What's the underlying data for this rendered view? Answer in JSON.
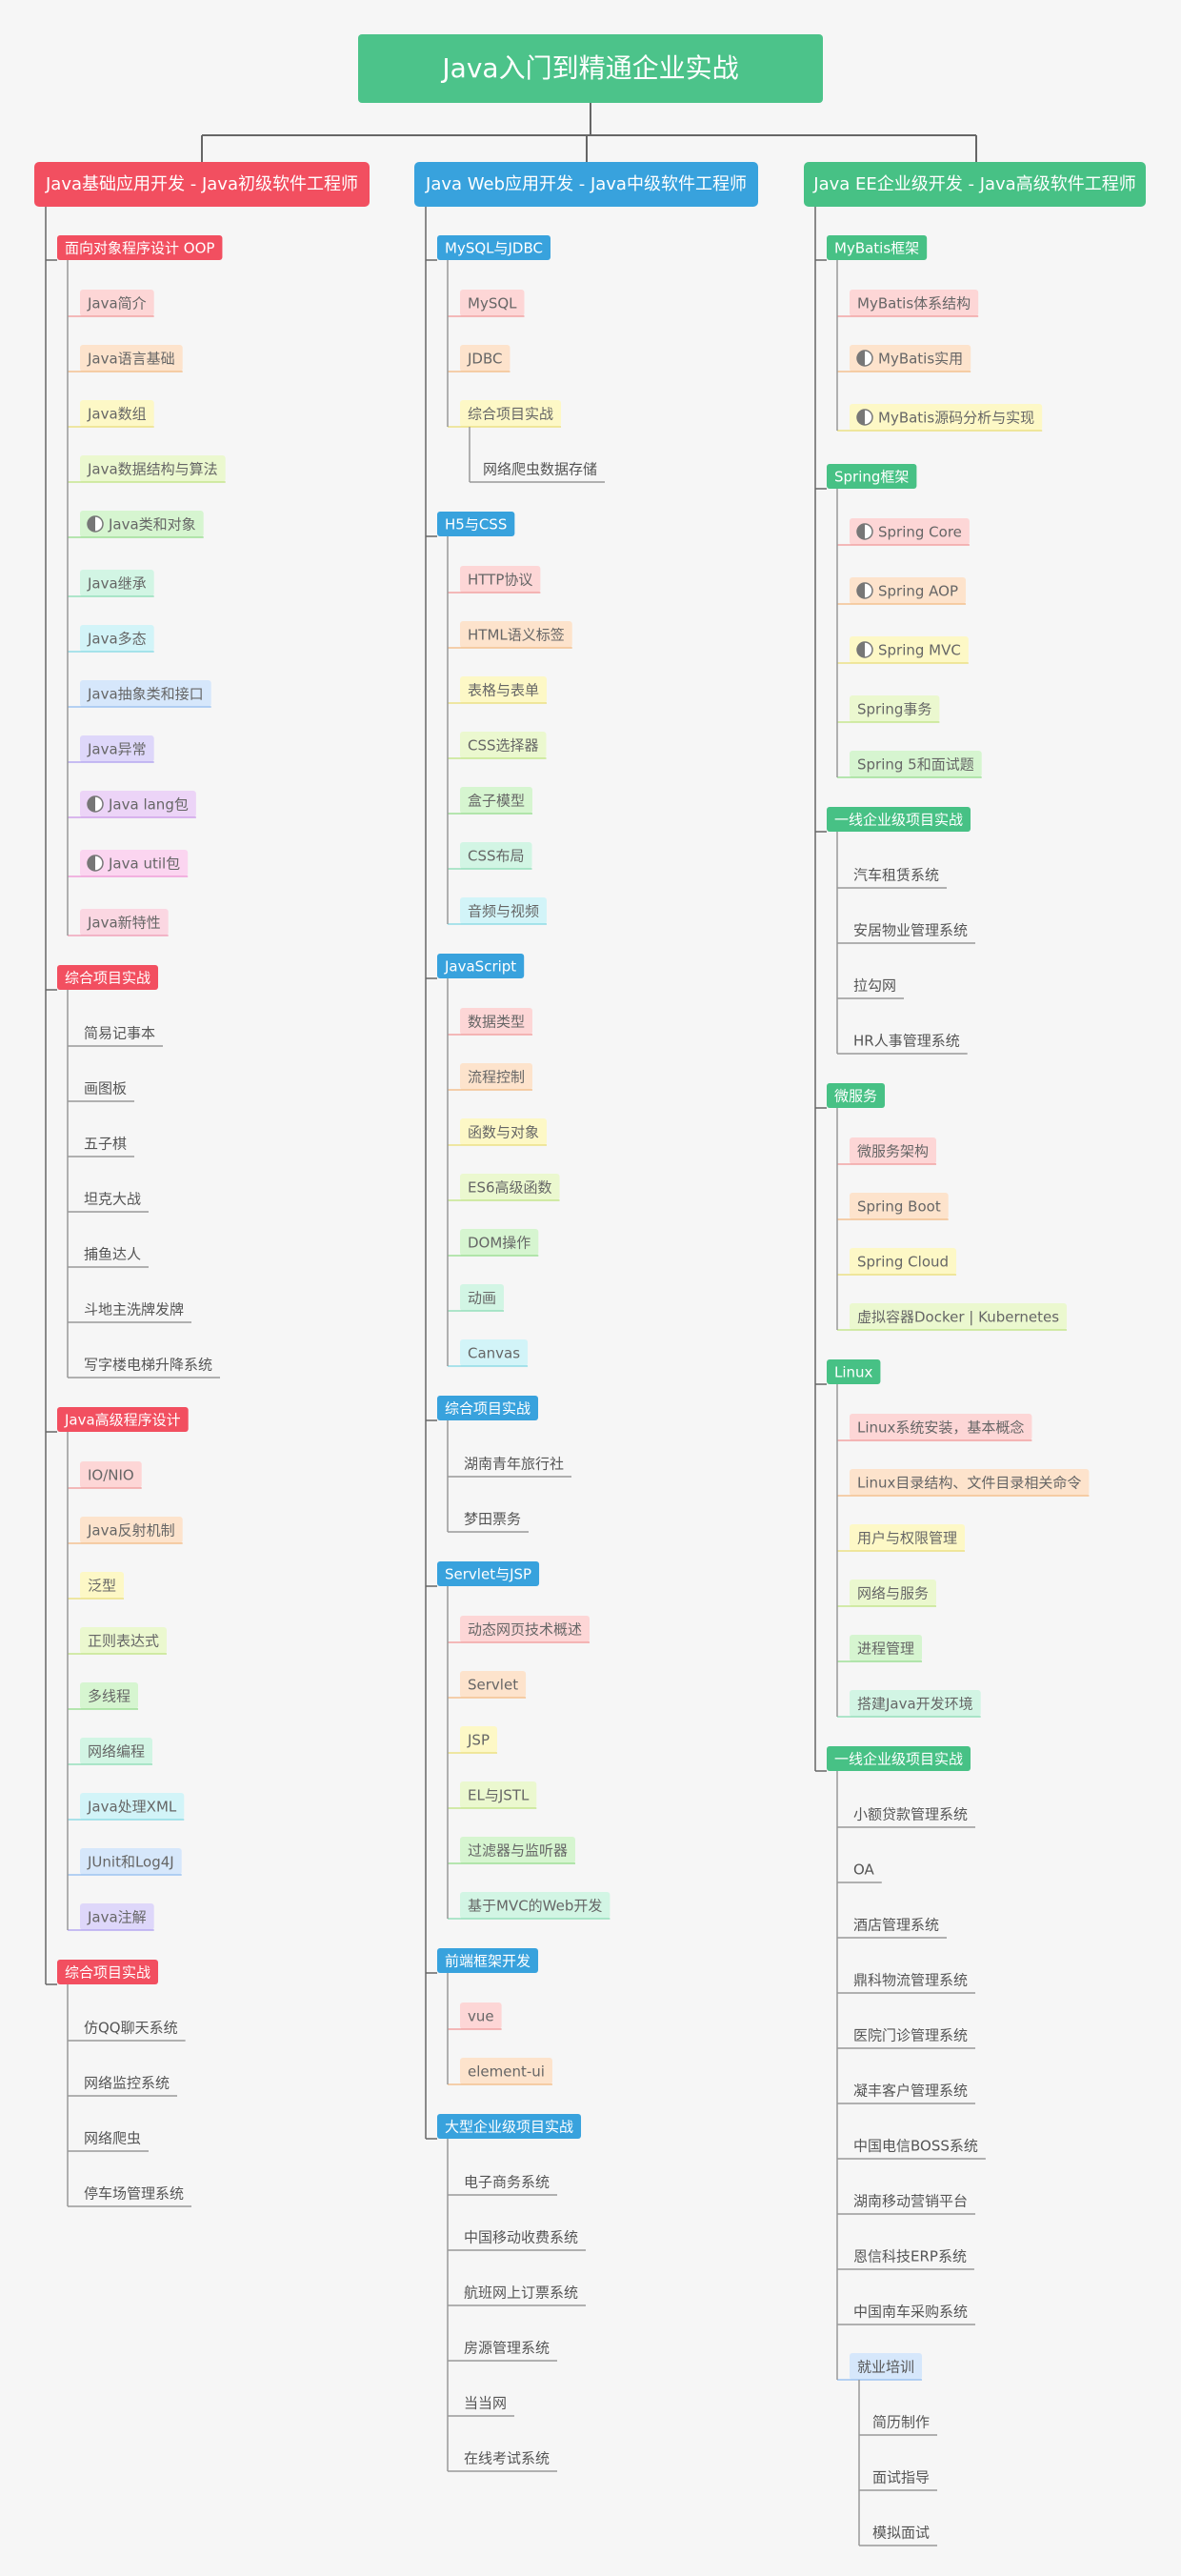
{
  "title": "Java入门到精通企业实战",
  "branches": [
    {
      "label": "Java基础应用开发 - Java初级软件工程师",
      "color": "#f24f60",
      "sections": [
        {
          "label": "面向对象程序设计 OOP",
          "items": [
            {
              "label": "Java简介"
            },
            {
              "label": "Java语言基础"
            },
            {
              "label": "Java数组"
            },
            {
              "label": "Java数据结构与算法"
            },
            {
              "label": "Java类和对象",
              "icon": "half-circle"
            },
            {
              "label": "Java继承"
            },
            {
              "label": "Java多态"
            },
            {
              "label": "Java抽象类和接口"
            },
            {
              "label": "Java异常"
            },
            {
              "label": "Java lang包",
              "icon": "half-circle"
            },
            {
              "label": "Java util包",
              "icon": "half-circle"
            },
            {
              "label": "Java新特性"
            }
          ]
        },
        {
          "label": "综合项目实战",
          "style": "plain",
          "items": [
            {
              "label": "简易记事本"
            },
            {
              "label": "画图板"
            },
            {
              "label": "五子棋"
            },
            {
              "label": "坦克大战"
            },
            {
              "label": "捕鱼达人"
            },
            {
              "label": "斗地主洗牌发牌"
            },
            {
              "label": "写字楼电梯升降系统"
            }
          ]
        },
        {
          "label": "Java高级程序设计",
          "items": [
            {
              "label": "IO/NIO"
            },
            {
              "label": "Java反射机制"
            },
            {
              "label": "泛型"
            },
            {
              "label": "正则表达式"
            },
            {
              "label": "多线程"
            },
            {
              "label": "网络编程"
            },
            {
              "label": "Java处理XML"
            },
            {
              "label": "JUnit和Log4J"
            },
            {
              "label": "Java注解"
            }
          ]
        },
        {
          "label": "综合项目实战",
          "style": "plain",
          "items": [
            {
              "label": "仿QQ聊天系统"
            },
            {
              "label": "网络监控系统"
            },
            {
              "label": "网络爬虫"
            },
            {
              "label": "停车场管理系统"
            }
          ]
        }
      ]
    },
    {
      "label": "Java Web应用开发 - Java中级软件工程师",
      "color": "#38a2dd",
      "sections": [
        {
          "label": "MySQL与JDBC",
          "items": [
            {
              "label": "MySQL"
            },
            {
              "label": "JDBC"
            },
            {
              "label": "综合项目实战",
              "children": [
                {
                  "label": "网络爬虫数据存储"
                }
              ]
            }
          ]
        },
        {
          "label": "H5与CSS",
          "items": [
            {
              "label": "HTTP协议"
            },
            {
              "label": "HTML语义标签"
            },
            {
              "label": "表格与表单"
            },
            {
              "label": "CSS选择器"
            },
            {
              "label": "盒子模型"
            },
            {
              "label": "CSS布局"
            },
            {
              "label": "音频与视频"
            }
          ]
        },
        {
          "label": "JavaScript",
          "items": [
            {
              "label": "数据类型"
            },
            {
              "label": "流程控制"
            },
            {
              "label": "函数与对象"
            },
            {
              "label": "ES6高级函数"
            },
            {
              "label": "DOM操作"
            },
            {
              "label": "动画"
            },
            {
              "label": "Canvas"
            }
          ]
        },
        {
          "label": "综合项目实战",
          "style": "plain",
          "items": [
            {
              "label": "湖南青年旅行社"
            },
            {
              "label": "梦田票务"
            }
          ]
        },
        {
          "label": "Servlet与JSP",
          "items": [
            {
              "label": "动态网页技术概述"
            },
            {
              "label": "Servlet"
            },
            {
              "label": "JSP"
            },
            {
              "label": "EL与JSTL"
            },
            {
              "label": "过滤器与监听器"
            },
            {
              "label": "基于MVC的Web开发"
            }
          ]
        },
        {
          "label": "前端框架开发",
          "items": [
            {
              "label": "vue"
            },
            {
              "label": "element-ui"
            }
          ]
        },
        {
          "label": "大型企业级项目实战",
          "style": "plain",
          "items": [
            {
              "label": "电子商务系统"
            },
            {
              "label": "中国移动收费系统"
            },
            {
              "label": "航班网上订票系统"
            },
            {
              "label": "房源管理系统"
            },
            {
              "label": "当当网"
            },
            {
              "label": "在线考试系统"
            }
          ]
        }
      ]
    },
    {
      "label": "Java EE企业级开发 - Java高级软件工程师",
      "color": "#47c185",
      "sections": [
        {
          "label": "MyBatis框架",
          "items": [
            {
              "label": "MyBatis体系结构"
            },
            {
              "label": "MyBatis实用",
              "icon": "half-circle"
            },
            {
              "label": "MyBatis源码分析与实现",
              "icon": "half-circle"
            }
          ]
        },
        {
          "label": "Spring框架",
          "items": [
            {
              "label": "Spring Core",
              "icon": "half-circle"
            },
            {
              "label": "Spring AOP",
              "icon": "half-circle"
            },
            {
              "label": "Spring MVC",
              "icon": "half-circle"
            },
            {
              "label": "Spring事务"
            },
            {
              "label": "Spring 5和面试题"
            }
          ]
        },
        {
          "label": "一线企业级项目实战",
          "style": "plain",
          "items": [
            {
              "label": "汽车租赁系统"
            },
            {
              "label": "安居物业管理系统"
            },
            {
              "label": "拉勾网"
            },
            {
              "label": "HR人事管理系统"
            }
          ]
        },
        {
          "label": "微服务",
          "items": [
            {
              "label": "微服务架构"
            },
            {
              "label": "Spring Boot"
            },
            {
              "label": "Spring Cloud"
            },
            {
              "label": "虚拟容器Docker | Kubernetes"
            }
          ]
        },
        {
          "label": "Linux",
          "items": [
            {
              "label": "Linux系统安装，基本概念"
            },
            {
              "label": "Linux目录结构、文件目录相关命令"
            },
            {
              "label": "用户与权限管理"
            },
            {
              "label": "网络与服务"
            },
            {
              "label": "进程管理"
            },
            {
              "label": "搭建Java开发环境"
            }
          ]
        },
        {
          "label": "一线企业级项目实战",
          "style": "plain",
          "items": [
            {
              "label": "小额贷款管理系统"
            },
            {
              "label": "OA"
            },
            {
              "label": "酒店管理系统"
            },
            {
              "label": "鼎科物流管理系统"
            },
            {
              "label": "医院门诊管理系统"
            },
            {
              "label": "凝丰客户管理系统"
            },
            {
              "label": "中国电信BOSS系统"
            },
            {
              "label": "湖南移动营销平台"
            },
            {
              "label": "恩信科技ERP系统"
            },
            {
              "label": "中国南车采购系统"
            },
            {
              "label": "就业培训",
              "style": "highlight",
              "children": [
                {
                  "label": "简历制作"
                },
                {
                  "label": "面试指导"
                },
                {
                  "label": "模拟面试"
                }
              ]
            }
          ]
        }
      ]
    }
  ]
}
